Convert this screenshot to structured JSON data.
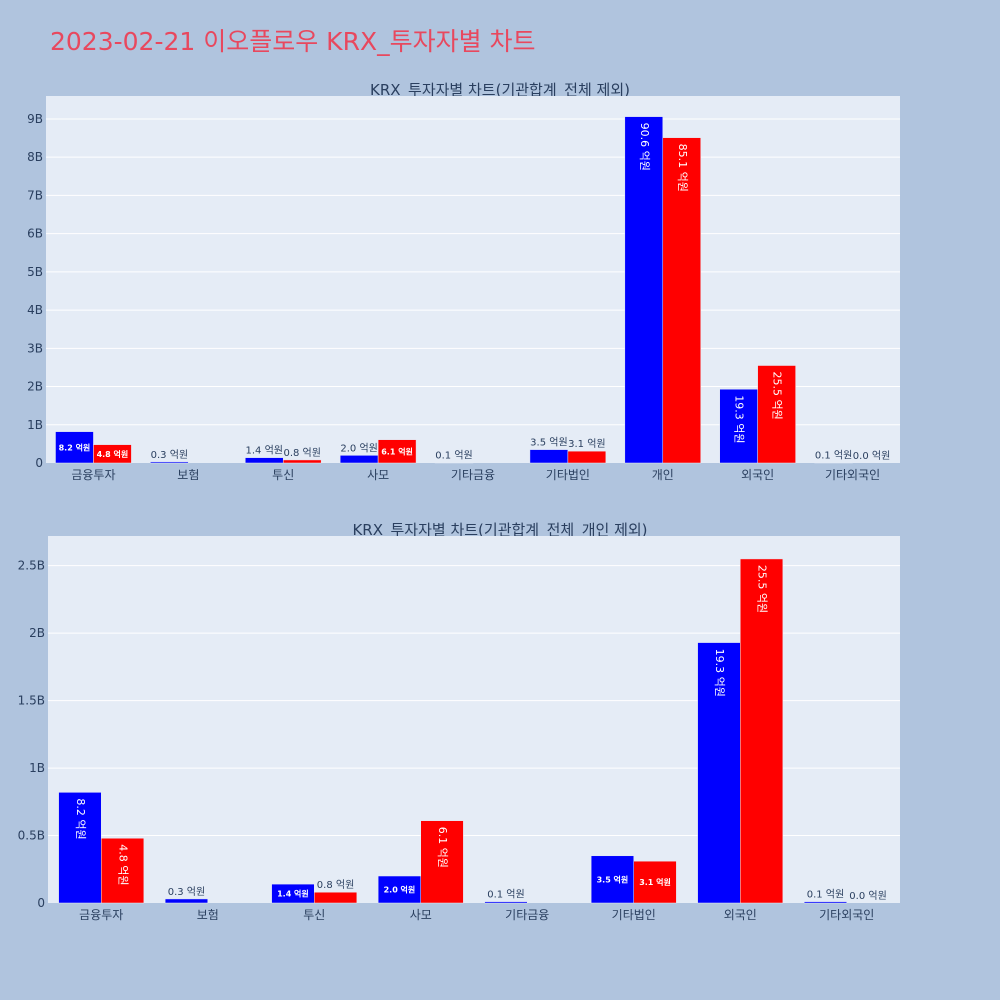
{
  "page_title": "2023-02-21 이오플로우 KRX_투자자별 차트",
  "colors": {
    "buy": "#0000ff",
    "sell": "#ff0000",
    "plot_bg": "#e5ecf6",
    "page_bg": "#b0c4de",
    "title": "#e8485e"
  },
  "chart_data": [
    {
      "type": "bar",
      "title": "KRX_투자자별 차트(기관합계_전체 제외)",
      "categories": [
        "금융투자",
        "보험",
        "투신",
        "사모",
        "기타금융",
        "기타법인",
        "개인",
        "외국인",
        "기타외국인"
      ],
      "series": [
        {
          "color": "#0000ff",
          "values": [
            820000000,
            30000000,
            140000000,
            200000000,
            10000000,
            350000000,
            9060000000,
            1930000000,
            10000000
          ],
          "labels": [
            "8.2 억원",
            "0.3 억원",
            "1.4 억원",
            "2.0 억원",
            "0.1 억원",
            "3.5 억원",
            "90.6 억원",
            "19.3 억원",
            "0.1 억원"
          ]
        },
        {
          "color": "#ff0000",
          "values": [
            480000000,
            0,
            80000000,
            610000000,
            0,
            310000000,
            8510000000,
            2550000000,
            0
          ],
          "labels": [
            "4.8 억원",
            "",
            "0.8 억원",
            "6.1 억원",
            "",
            "3.1 억원",
            "85.1 억원",
            "25.5 억원",
            "0.0 억원"
          ]
        }
      ],
      "ylim": [
        0,
        9600000000
      ],
      "yticks": [
        0,
        1000000000,
        2000000000,
        3000000000,
        4000000000,
        5000000000,
        6000000000,
        7000000000,
        8000000000,
        9000000000
      ],
      "yticklabels": [
        "0",
        "1B",
        "2B",
        "3B",
        "4B",
        "5B",
        "6B",
        "7B",
        "8B",
        "9B"
      ],
      "grid": true,
      "xlabel": "",
      "ylabel": ""
    },
    {
      "type": "bar",
      "title": "KRX_투자자별 차트(기관합계_전체_개인 제외)",
      "categories": [
        "금융투자",
        "보험",
        "투신",
        "사모",
        "기타금융",
        "기타법인",
        "외국인",
        "기타외국인"
      ],
      "series": [
        {
          "color": "#0000ff",
          "values": [
            820000000,
            30000000,
            140000000,
            200000000,
            10000000,
            350000000,
            1930000000,
            10000000
          ],
          "labels": [
            "8.2 억원",
            "0.3 억원",
            "1.4 억원",
            "2.0 억원",
            "0.1 억원",
            "3.5 억원",
            "19.3 억원",
            "0.1 억원"
          ]
        },
        {
          "color": "#ff0000",
          "values": [
            480000000,
            0,
            80000000,
            610000000,
            0,
            310000000,
            2550000000,
            0
          ],
          "labels": [
            "4.8 억원",
            "",
            "0.8 억원",
            "6.1 억원",
            "",
            "3.1 억원",
            "25.5 억원",
            "0.0 억원"
          ]
        }
      ],
      "ylim": [
        0,
        2720000000
      ],
      "yticks": [
        0,
        500000000,
        1000000000,
        1500000000,
        2000000000,
        2500000000
      ],
      "yticklabels": [
        "0",
        "0.5B",
        "1B",
        "1.5B",
        "2B",
        "2.5B"
      ],
      "grid": true,
      "xlabel": "",
      "ylabel": ""
    }
  ]
}
